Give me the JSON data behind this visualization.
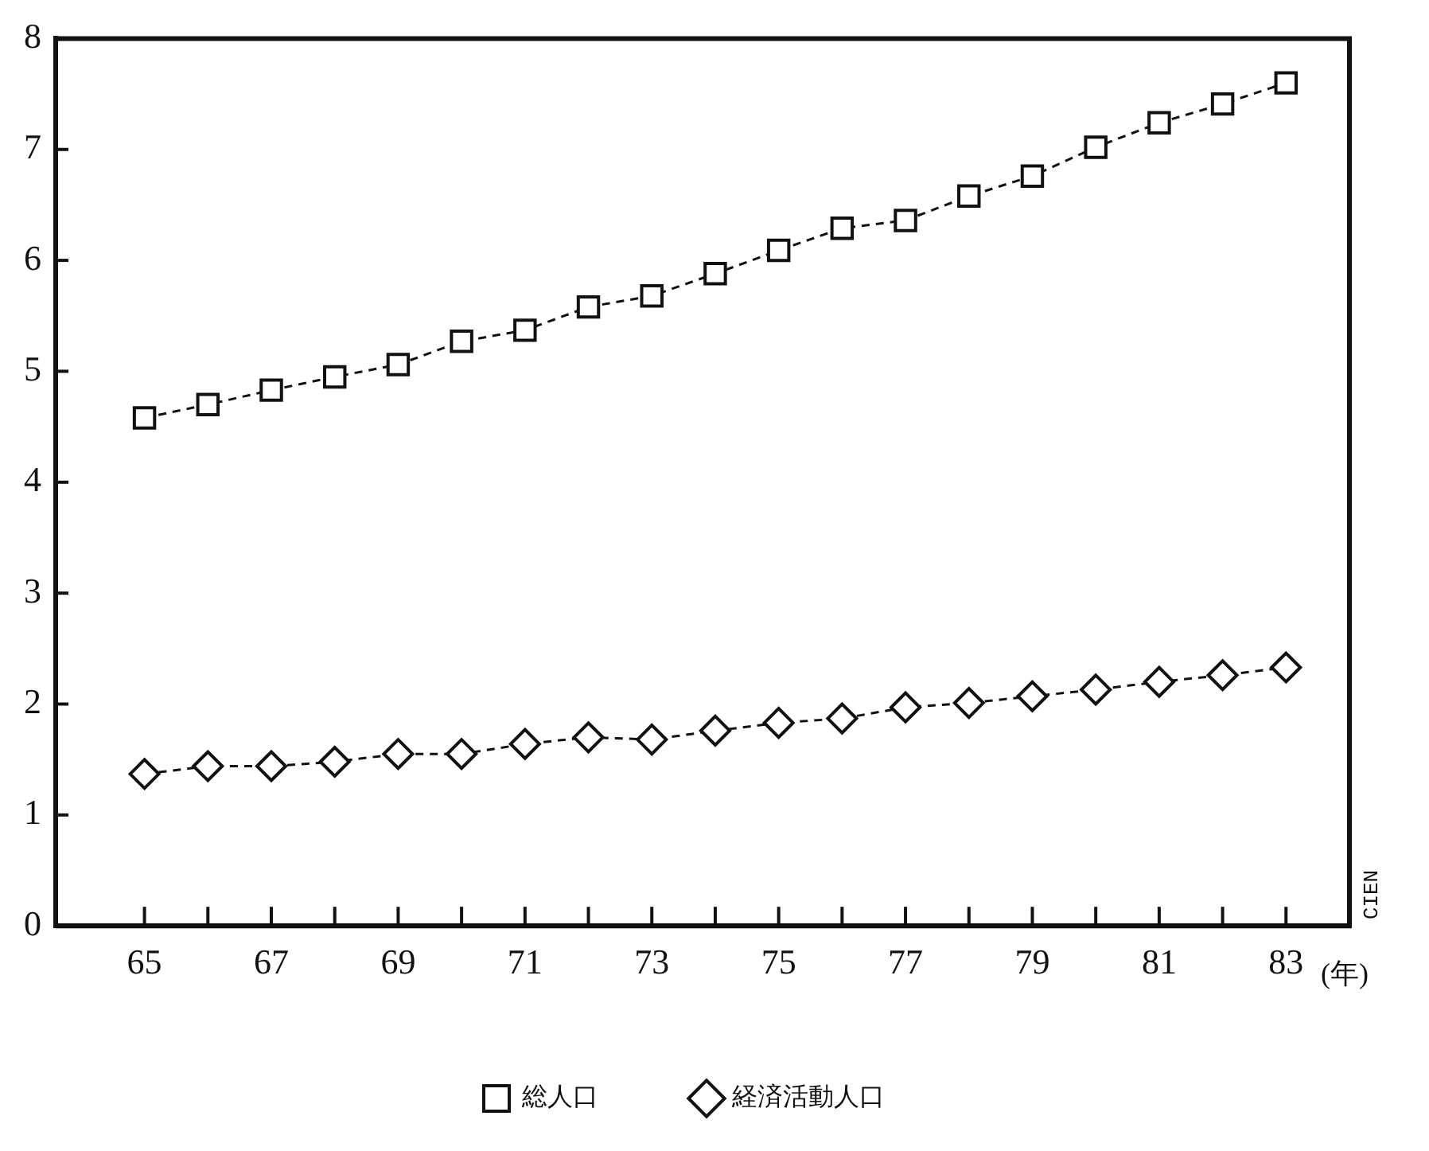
{
  "chart_data": {
    "type": "line",
    "xlabel": "(年)",
    "annotations": [
      "CIEN"
    ],
    "x": [
      65,
      66,
      67,
      68,
      69,
      70,
      71,
      72,
      73,
      74,
      75,
      76,
      77,
      78,
      79,
      80,
      81,
      82,
      83
    ],
    "series": [
      {
        "name": "総人口",
        "color": "#111111",
        "marker": "square",
        "values": [
          4.58,
          4.7,
          4.83,
          4.95,
          5.06,
          5.27,
          5.37,
          5.58,
          5.68,
          5.88,
          6.09,
          6.29,
          6.36,
          6.58,
          6.76,
          7.02,
          7.24,
          7.41,
          7.6
        ]
      },
      {
        "name": "経済活動人口",
        "color": "#111111",
        "marker": "diamond",
        "values": [
          1.37,
          1.44,
          1.44,
          1.48,
          1.55,
          1.55,
          1.64,
          1.7,
          1.68,
          1.76,
          1.83,
          1.87,
          1.97,
          2.01,
          2.07,
          2.13,
          2.2,
          2.26,
          2.33
        ]
      }
    ],
    "xlim": [
      63.6,
      84
    ],
    "xticks": [
      65,
      {
        "value": 66,
        "label": null
      },
      67,
      {
        "value": 68,
        "label": null
      },
      69,
      {
        "value": 70,
        "label": null
      },
      71,
      {
        "value": 72,
        "label": null
      },
      73,
      {
        "value": 74,
        "label": null
      },
      75,
      {
        "value": 76,
        "label": null
      },
      77,
      {
        "value": 78,
        "label": null
      },
      79,
      {
        "value": 80,
        "label": null
      },
      81,
      {
        "value": 82,
        "label": null
      },
      83
    ],
    "ylim": [
      0,
      8
    ],
    "yticks": [
      0,
      1,
      2,
      3,
      4,
      5,
      6,
      7,
      8
    ],
    "grid": false,
    "legend": "bottom",
    "line_style": "dashed"
  }
}
